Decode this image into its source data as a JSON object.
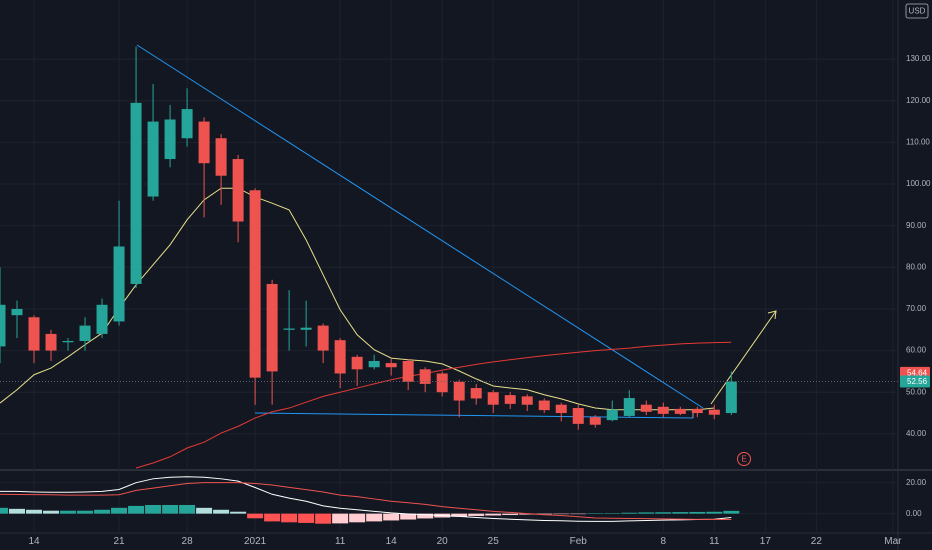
{
  "chart_data": {
    "type": "candlestick",
    "currency": "USD",
    "grid": true,
    "up_color": "#26a69a",
    "down_color": "#ef5350",
    "ylim": [
      31.8,
      144.2
    ],
    "yticks": [
      {
        "value": 40,
        "label": "40.00"
      },
      {
        "value": 50,
        "label": "50.00"
      },
      {
        "value": 60,
        "label": "60.00"
      },
      {
        "value": 70,
        "label": "70.00"
      },
      {
        "value": 80,
        "label": "80.00"
      },
      {
        "value": 90,
        "label": "90.00"
      },
      {
        "value": 100,
        "label": "100.00"
      },
      {
        "value": 110,
        "label": "110.00"
      },
      {
        "value": 120,
        "label": "120.00"
      },
      {
        "value": 130,
        "label": "130.00"
      }
    ],
    "xlim": [
      0,
      52.8
    ],
    "xticks": [
      {
        "value": 2,
        "label": "14"
      },
      {
        "value": 7,
        "label": "21"
      },
      {
        "value": 11,
        "label": "28"
      },
      {
        "value": 15,
        "label": "2021"
      },
      {
        "value": 20,
        "label": "11"
      },
      {
        "value": 23,
        "label": "14"
      },
      {
        "value": 26,
        "label": "20"
      },
      {
        "value": 29,
        "label": "25"
      },
      {
        "value": 34,
        "label": "Feb"
      },
      {
        "value": 39,
        "label": "8"
      },
      {
        "value": 42,
        "label": "11"
      },
      {
        "value": 45,
        "label": "17"
      },
      {
        "value": 48,
        "label": "22"
      },
      {
        "value": 52.5,
        "label": "Mar"
      }
    ],
    "open": [
      61,
      68.5,
      68,
      64,
      62,
      62.3,
      64,
      67,
      76,
      97,
      106,
      111,
      115,
      111,
      106,
      98.5,
      76,
      65,
      65,
      66,
      62.5,
      58.5,
      56,
      57,
      57.5,
      55.5,
      54.5,
      52.5,
      51,
      50,
      49.3,
      49,
      48,
      47,
      46.2,
      44,
      43.3,
      44.3,
      47,
      46.5,
      46,
      46,
      45.8,
      45
    ],
    "high": [
      80,
      72,
      68.5,
      65,
      63,
      68,
      72.5,
      96,
      133,
      124,
      119,
      123,
      116,
      112,
      107,
      99,
      77,
      74.5,
      72,
      66.5,
      63,
      59,
      59,
      58,
      58,
      56,
      55,
      53,
      52,
      50.5,
      50,
      49.5,
      48.5,
      47.5,
      47,
      44.5,
      48,
      50.5,
      48,
      47.5,
      46.5,
      46.5,
      47,
      55
    ],
    "low": [
      57,
      63,
      57,
      57.5,
      60,
      60,
      63,
      66,
      75,
      96,
      104,
      109,
      92,
      95,
      86,
      47,
      47,
      60,
      61,
      57,
      51,
      51.5,
      55.5,
      54,
      50.5,
      50,
      49,
      44,
      47,
      45,
      46,
      45.5,
      45,
      43,
      41,
      41.5,
      43,
      44,
      44.5,
      44,
      44.5,
      44,
      43.5,
      44.5
    ],
    "close": [
      71,
      70,
      60,
      60,
      62.3,
      66,
      71,
      85,
      119.5,
      115,
      115.5,
      118,
      105,
      102,
      91,
      53.5,
      55,
      65.3,
      65.5,
      60,
      54.5,
      55.5,
      57.5,
      56,
      52.5,
      52,
      50,
      48,
      48.5,
      47,
      47.2,
      47,
      45.7,
      45,
      42.4,
      42.2,
      45.8,
      48.6,
      45.3,
      44.8,
      44.8,
      45,
      44.6,
      52.56
    ],
    "overlays": [
      {
        "color": "#e8e08a",
        "values": [
          47.4,
          50.6,
          54.2,
          55.8,
          58.5,
          61.4,
          64.2,
          70.2,
          75.8,
          80.6,
          85.4,
          91.4,
          96.2,
          99.0,
          99.0,
          96.9,
          95.4,
          93.8,
          86.6,
          78.2,
          69.8,
          63.8,
          60.2,
          58.2,
          57.8,
          57.5,
          56.8,
          55.1,
          53.2,
          51.5,
          51.0,
          50.6,
          49.4,
          48.4,
          47.2,
          46.2,
          45.8,
          45.8,
          45.8,
          45.8,
          45.8,
          45.8,
          46.2,
          null
        ]
      },
      {
        "color": "#e53935",
        "values": [
          null,
          null,
          null,
          null,
          null,
          null,
          null,
          null,
          31.8,
          33,
          34.5,
          36.6,
          38,
          40.2,
          41.8,
          43.8,
          45.3,
          46.2,
          47.6,
          49,
          50,
          51,
          52,
          53,
          53.8,
          54.5,
          55.3,
          56,
          56.7,
          57.3,
          57.8,
          58.3,
          58.8,
          59.2,
          59.6,
          60,
          60.3,
          60.6,
          61,
          61.3,
          61.6,
          61.8,
          61.9,
          62
        ]
      }
    ],
    "price_tags": [
      {
        "value": 54.64,
        "color": "#ef5350"
      },
      {
        "value": 52.56,
        "color": "#26a69a"
      }
    ],
    "earnings_marker": "E",
    "macd": {
      "ylim": [
        -12.5,
        26.9
      ],
      "yticks": [
        {
          "value": 0,
          "label": "0.00"
        },
        {
          "value": 20,
          "label": "20.00"
        }
      ],
      "histogram": [
        3.75,
        3.1,
        2.5,
        1.9,
        1.9,
        1.9,
        2.5,
        3.75,
        5,
        5.6,
        5.6,
        5.6,
        3.75,
        2.5,
        1.25,
        -3,
        -5,
        -5.6,
        -6,
        -6.5,
        -6.3,
        -5.6,
        -5,
        -4.4,
        -3.8,
        -3.1,
        -2.5,
        -2,
        -1.5,
        -1.2,
        -0.9,
        -0.6,
        -0.4,
        -0.2,
        -0.1,
        0.1,
        0.3,
        0.6,
        0.8,
        0.9,
        1,
        1.1,
        1.2,
        1.8
      ],
      "lines": [
        {
          "color": "#ffffff",
          "values": [
            14.4,
            14.4,
            14,
            13.8,
            13.8,
            14,
            14.4,
            15.6,
            20,
            22.5,
            23.5,
            23.8,
            23.5,
            22.5,
            21,
            16.9,
            12.5,
            10,
            8,
            5,
            3.5,
            2.5,
            1.5,
            0.5,
            -0.2,
            -0.7,
            -1.2,
            -1.8,
            -2.5,
            -3.1,
            -3.6,
            -4,
            -4.4,
            -4.6,
            -4.9,
            -5,
            -5,
            -4.7,
            -4.4,
            -4.2,
            -4,
            -3.8,
            -3.6,
            -2.5
          ]
        },
        {
          "color": "#ef5350",
          "values": [
            12.5,
            12.4,
            12.3,
            12.2,
            12,
            12,
            12,
            12.2,
            15,
            16.5,
            18,
            19.5,
            20,
            20,
            20,
            19.5,
            18.5,
            17,
            15.5,
            14,
            12,
            11,
            9.5,
            8,
            7,
            6,
            4.5,
            3.5,
            2.5,
            1.5,
            0.8,
            0,
            -0.7,
            -1.2,
            -2,
            -2.8,
            -3,
            -3.1,
            -3.2,
            -3.4,
            -3.5,
            -3.7,
            -3.8,
            -3.8
          ]
        }
      ]
    }
  }
}
